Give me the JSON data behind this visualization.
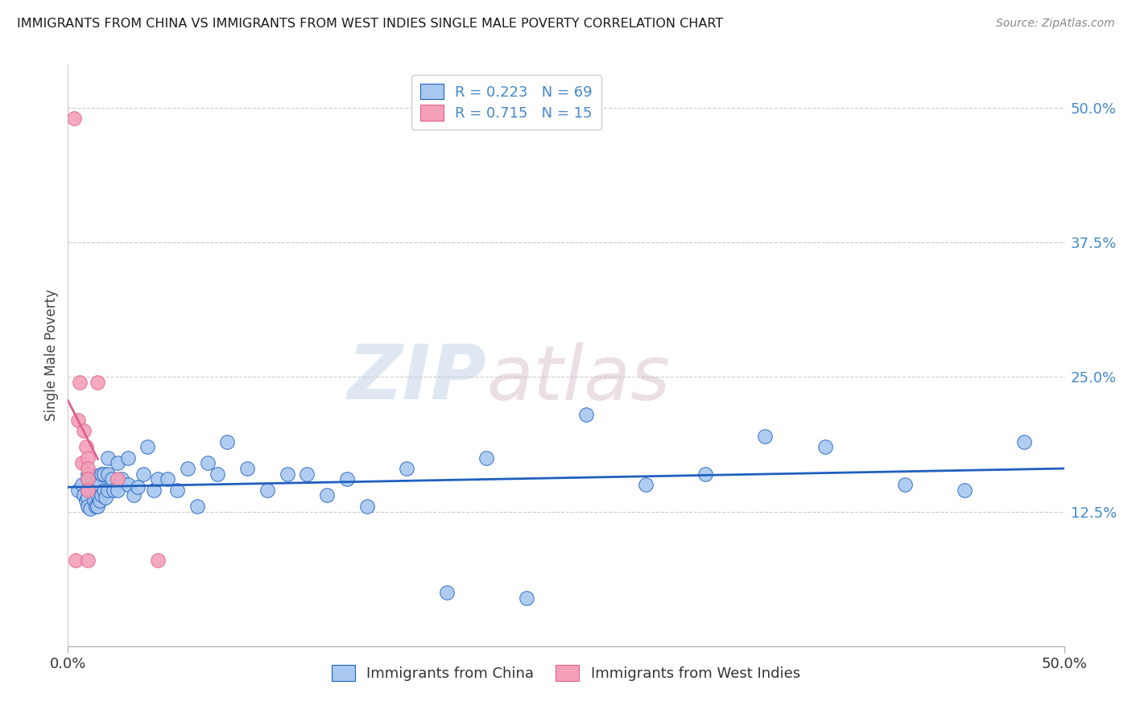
{
  "title": "IMMIGRANTS FROM CHINA VS IMMIGRANTS FROM WEST INDIES SINGLE MALE POVERTY CORRELATION CHART",
  "source": "Source: ZipAtlas.com",
  "ylabel": "Single Male Poverty",
  "xlim": [
    0.0,
    0.5
  ],
  "ylim": [
    0.0,
    0.54
  ],
  "xticks": [
    0.0,
    0.5
  ],
  "xticklabels": [
    "0.0%",
    "50.0%"
  ],
  "ytick_positions": [
    0.125,
    0.25,
    0.375,
    0.5
  ],
  "ytick_labels": [
    "12.5%",
    "25.0%",
    "37.5%",
    "50.0%"
  ],
  "legend_r1": "R = 0.223",
  "legend_n1": "N = 69",
  "legend_r2": "R = 0.715",
  "legend_n2": "N = 15",
  "legend_label1": "Immigrants from China",
  "legend_label2": "Immigrants from West Indies",
  "watermark_zip": "ZIP",
  "watermark_atlas": "atlas",
  "color_china": "#a8c8f0",
  "color_wi": "#f4a0b8",
  "color_china_line": "#2060c0",
  "color_wi_line": "#e06090",
  "color_legend_text": "#4488cc",
  "china_x": [
    0.005,
    0.007,
    0.008,
    0.009,
    0.01,
    0.01,
    0.01,
    0.01,
    0.01,
    0.011,
    0.012,
    0.012,
    0.013,
    0.013,
    0.014,
    0.014,
    0.015,
    0.015,
    0.015,
    0.015,
    0.016,
    0.016,
    0.017,
    0.017,
    0.018,
    0.018,
    0.019,
    0.02,
    0.02,
    0.02,
    0.022,
    0.023,
    0.025,
    0.025,
    0.027,
    0.03,
    0.03,
    0.033,
    0.035,
    0.038,
    0.04,
    0.043,
    0.045,
    0.05,
    0.055,
    0.06,
    0.065,
    0.07,
    0.075,
    0.08,
    0.09,
    0.1,
    0.11,
    0.12,
    0.13,
    0.14,
    0.15,
    0.17,
    0.19,
    0.21,
    0.23,
    0.26,
    0.29,
    0.32,
    0.35,
    0.38,
    0.42,
    0.45,
    0.48
  ],
  "china_y": [
    0.145,
    0.15,
    0.14,
    0.135,
    0.16,
    0.155,
    0.145,
    0.138,
    0.13,
    0.128,
    0.155,
    0.145,
    0.15,
    0.135,
    0.145,
    0.13,
    0.158,
    0.148,
    0.14,
    0.13,
    0.15,
    0.135,
    0.16,
    0.14,
    0.16,
    0.145,
    0.138,
    0.175,
    0.16,
    0.145,
    0.155,
    0.145,
    0.17,
    0.145,
    0.155,
    0.175,
    0.15,
    0.14,
    0.148,
    0.16,
    0.185,
    0.145,
    0.155,
    0.155,
    0.145,
    0.165,
    0.13,
    0.17,
    0.16,
    0.19,
    0.165,
    0.145,
    0.16,
    0.16,
    0.14,
    0.155,
    0.13,
    0.165,
    0.05,
    0.175,
    0.045,
    0.215,
    0.15,
    0.16,
    0.195,
    0.185,
    0.15,
    0.145,
    0.19
  ],
  "wi_x": [
    0.003,
    0.004,
    0.005,
    0.006,
    0.007,
    0.008,
    0.009,
    0.01,
    0.01,
    0.01,
    0.01,
    0.01,
    0.015,
    0.025,
    0.045
  ],
  "wi_y": [
    0.49,
    0.08,
    0.21,
    0.245,
    0.17,
    0.2,
    0.185,
    0.175,
    0.165,
    0.155,
    0.145,
    0.08,
    0.245,
    0.155,
    0.08
  ]
}
